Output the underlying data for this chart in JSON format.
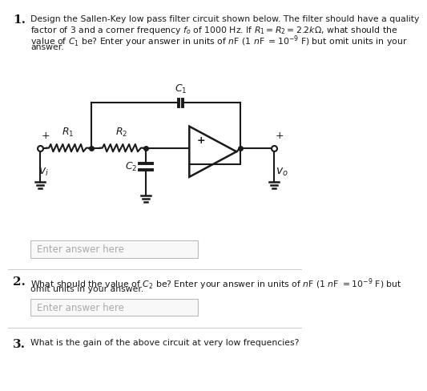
{
  "bg_color": "#ffffff",
  "fig_width": 4.74,
  "fig_height": 6.09,
  "text_color": "#1a1a1a",
  "circuit_color": "#1a1a1a",
  "answer_box_color": "#f5f5f5",
  "answer_box_border": "#bbbbbb",
  "answer_placeholder": "Enter answer here",
  "divider_color": "#cccccc",
  "q1_num": "1.",
  "q2_num": "2.",
  "q3_num": "3.",
  "q1_line1": "Design the Sallen-Key low pass filter circuit shown below. The filter should have a quality",
  "q1_line2": "factor of 3 and a corner frequency $f_o$ of 1000 Hz. If $R_1 = R_2 = 2.2k\\Omega$, what should the",
  "q1_line3": "value of $C_1$ be? Enter your answer in units of $n$F (1 $n$F $= 10^{-9}$ F) but omit units in your",
  "q1_line4": "answer.",
  "q2_line1": "What should the value of $C_2$ be? Enter your answer in units of $n$F (1 $n$F $= 10^{-9}$ F) but",
  "q2_line2": "omit units in your answer.",
  "q3_line1": "What is the gain of the above circuit at very low frequencies?"
}
